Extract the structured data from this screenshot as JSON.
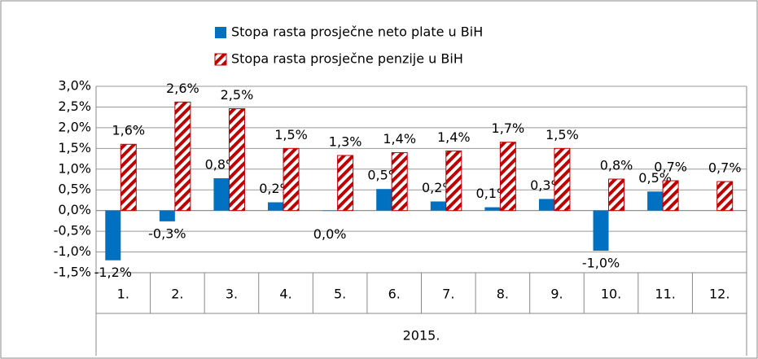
{
  "chart_data": {
    "type": "bar",
    "categories": [
      "1.",
      "2.",
      "3.",
      "4.",
      "5.",
      "6.",
      "7.",
      "8.",
      "9.",
      "10.",
      "11.",
      "12."
    ],
    "category_group": "2015.",
    "series": [
      {
        "name": "Stopa rasta prosječne neto plate u BiH",
        "color": "#0070c0",
        "values": [
          -1.2,
          -0.26,
          0.78,
          0.2,
          0.0,
          0.52,
          0.22,
          0.08,
          0.28,
          -0.97,
          0.46,
          null
        ],
        "value_labels": [
          "-1,2%",
          "-0,3%",
          "0,8%",
          "0,2%",
          "0,0%",
          "0,5%",
          "0,2%",
          "0,1%",
          "0,3%",
          "-1,0%",
          "0,5%",
          null
        ]
      },
      {
        "name": "Stopa rasta prosječne penzije u BiH",
        "color": "#c00000",
        "pattern": "diagonal-stripes",
        "values": [
          1.6,
          2.62,
          2.46,
          1.5,
          1.33,
          1.4,
          1.44,
          1.65,
          1.5,
          0.76,
          0.72,
          0.7
        ],
        "value_labels": [
          "1,6%",
          "2,6%",
          "2,5%",
          "1,5%",
          "1,3%",
          "1,4%",
          "1,4%",
          "1,7%",
          "1,5%",
          "0,8%",
          "0,7%",
          "0,7%"
        ]
      }
    ],
    "ylim": [
      -1.5,
      3.0
    ],
    "yticks": [
      {
        "value": -1.5,
        "label": "-1,5%"
      },
      {
        "value": -1.0,
        "label": "-1,0%"
      },
      {
        "value": -0.5,
        "label": "-0,5%"
      },
      {
        "value": 0.0,
        "label": "0,0%"
      },
      {
        "value": 0.5,
        "label": "0,5%"
      },
      {
        "value": 1.0,
        "label": "1,0%"
      },
      {
        "value": 1.5,
        "label": "1,5%"
      },
      {
        "value": 2.0,
        "label": "2,0%"
      },
      {
        "value": 2.5,
        "label": "2,5%"
      },
      {
        "value": 3.0,
        "label": "3,0%"
      }
    ],
    "grid": true,
    "legend": "top"
  }
}
